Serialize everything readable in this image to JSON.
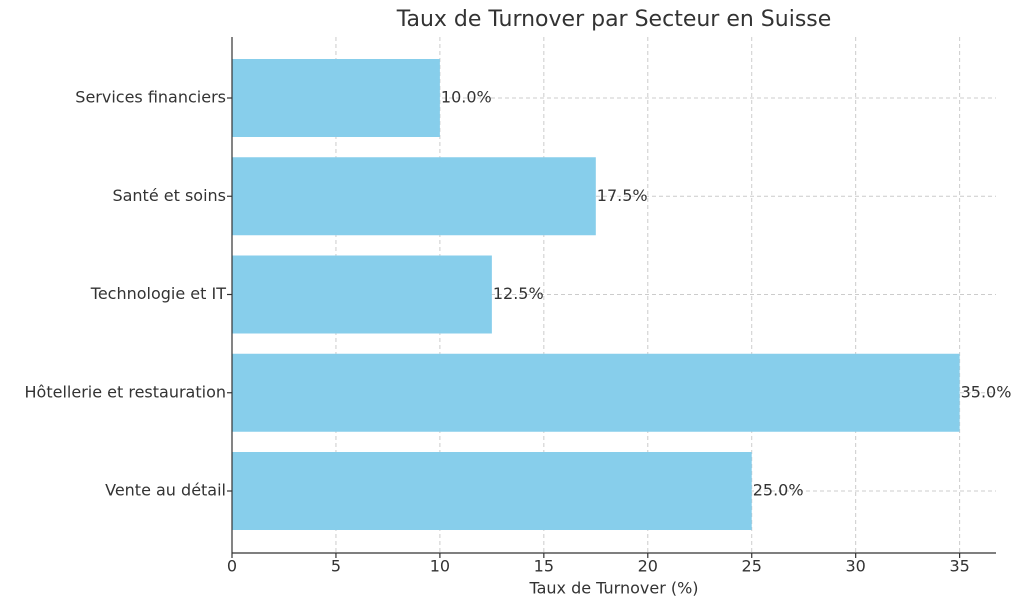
{
  "chart_data": {
    "type": "barh",
    "title": "Taux de Turnover par Secteur en Suisse",
    "xlabel": "Taux de Turnover (%)",
    "categories": [
      "Vente au détail",
      "Hôtellerie et restauration",
      "Technologie et IT",
      "Santé et soins",
      "Services financiers"
    ],
    "values": [
      25.0,
      35.0,
      12.5,
      17.5,
      10.0
    ],
    "value_labels": [
      "25.0%",
      "35.0%",
      "12.5%",
      "17.5%",
      "10.0%"
    ],
    "color": "#87ceeb",
    "xlim": [
      0,
      36.75
    ],
    "xticks": [
      0,
      5,
      10,
      15,
      20,
      25,
      30,
      35
    ],
    "grid": true
  }
}
